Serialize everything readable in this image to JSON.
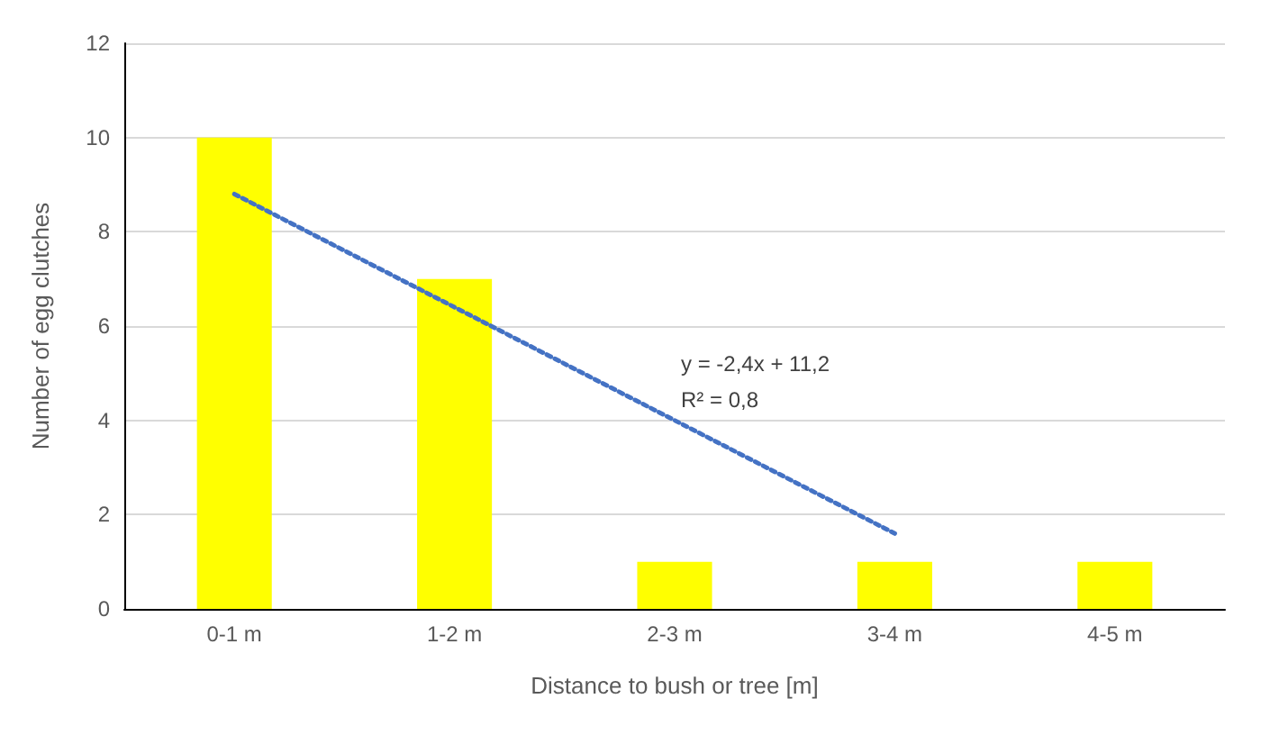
{
  "chart_data": {
    "type": "bar",
    "xlabel": "Distance to bush or tree [m]",
    "ylabel": "Number of egg clutches",
    "categories": [
      "0-1 m",
      "1-2 m",
      "2-3 m",
      "3-4 m",
      "4-5 m"
    ],
    "series": [
      {
        "color": "#ffff00",
        "values": [
          10,
          7,
          1,
          1,
          1
        ]
      },
      {
        "type": "line",
        "color": "#4472c4",
        "line_style": "dotted",
        "marker": "none",
        "values": [
          8.8,
          6.4,
          4.0,
          1.6,
          null
        ]
      }
    ],
    "ylim": [
      0,
      12
    ],
    "yticks": [
      0,
      2,
      4,
      6,
      8,
      10,
      12
    ],
    "grid": "y",
    "annotations": [
      "y = -2,4x + 11,2",
      "R² = 0,8"
    ]
  }
}
